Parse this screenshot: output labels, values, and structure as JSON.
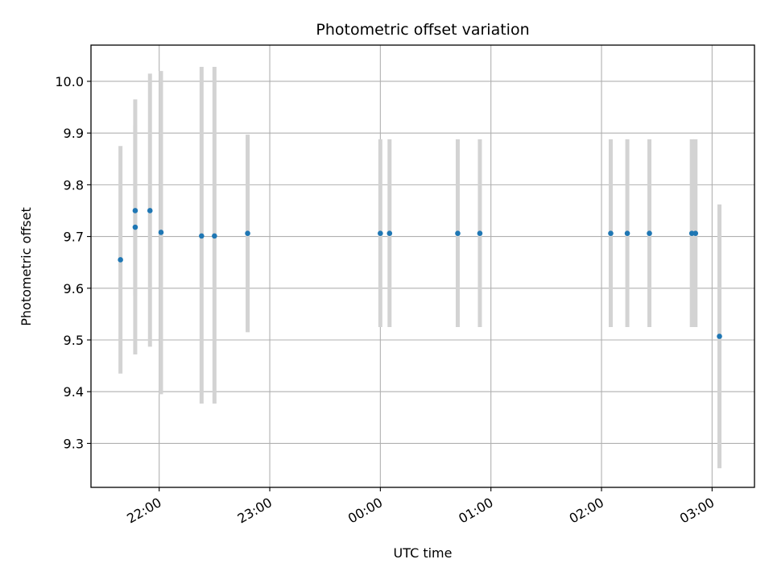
{
  "chart_data": {
    "type": "scatter",
    "title": "Photometric offset variation",
    "xlabel": "UTC time",
    "ylabel": "Photometric offset",
    "x_axis": {
      "kind": "time",
      "start": "21:23",
      "end": "03:23",
      "ticks": [
        "22:00",
        "23:00",
        "00:00",
        "01:00",
        "02:00",
        "03:00"
      ],
      "tick_label_rotation": "30deg"
    },
    "ylim": [
      9.215,
      10.07
    ],
    "yticks": [
      "9.3",
      "9.4",
      "9.5",
      "9.6",
      "9.7",
      "9.8",
      "9.9",
      "10.0"
    ],
    "grid": true,
    "marker_color": "#1f77b4",
    "errorbar_color": "#d3d3d3",
    "points": [
      {
        "time": "21:39",
        "y": 9.655,
        "err_low": 9.435,
        "err_high": 9.875
      },
      {
        "time": "21:47",
        "y": 9.75,
        "err_low": 9.585,
        "err_high": 9.915
      },
      {
        "time": "21:47",
        "y": 9.718,
        "err_low": 9.472,
        "err_high": 9.965
      },
      {
        "time": "21:55",
        "y": 9.75,
        "err_low": 9.487,
        "err_high": 10.015
      },
      {
        "time": "22:01",
        "y": 9.708,
        "err_low": 9.395,
        "err_high": 10.02
      },
      {
        "time": "22:23",
        "y": 9.701,
        "err_low": 9.377,
        "err_high": 10.028
      },
      {
        "time": "22:30",
        "y": 9.701,
        "err_low": 9.377,
        "err_high": 10.028
      },
      {
        "time": "22:48",
        "y": 9.706,
        "err_low": 9.515,
        "err_high": 9.897
      },
      {
        "time": "00:00",
        "y": 9.706,
        "err_low": 9.525,
        "err_high": 9.888
      },
      {
        "time": "00:05",
        "y": 9.706,
        "err_low": 9.525,
        "err_high": 9.888
      },
      {
        "time": "00:42",
        "y": 9.706,
        "err_low": 9.525,
        "err_high": 9.888
      },
      {
        "time": "00:54",
        "y": 9.706,
        "err_low": 9.525,
        "err_high": 9.888
      },
      {
        "time": "02:05",
        "y": 9.706,
        "err_low": 9.525,
        "err_high": 9.888
      },
      {
        "time": "02:14",
        "y": 9.706,
        "err_low": 9.525,
        "err_high": 9.888
      },
      {
        "time": "02:26",
        "y": 9.706,
        "err_low": 9.525,
        "err_high": 9.888
      },
      {
        "time": "02:49",
        "y": 9.706,
        "err_low": 9.525,
        "err_high": 9.888
      },
      {
        "time": "02:51",
        "y": 9.706,
        "err_low": 9.525,
        "err_high": 9.888
      },
      {
        "time": "03:04",
        "y": 9.507,
        "err_low": 9.252,
        "err_high": 9.762
      }
    ]
  }
}
